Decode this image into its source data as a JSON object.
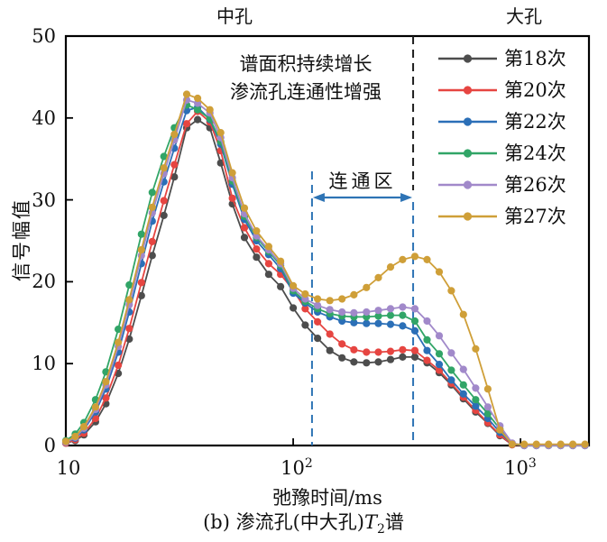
{
  "figure": {
    "region_labels": {
      "mid": "中孔",
      "large": "大孔"
    },
    "annotation": {
      "line1": "谱面积持续增长",
      "line2": "渗流孔连通性增强",
      "color": "#3d7ac0"
    },
    "zone": {
      "label": "连通区",
      "start_ms": 121,
      "end_ms": 337
    },
    "colors": {
      "dashed_blue": "#2e74b5",
      "dashed_black": "#1f1f1f",
      "axis": "#000000",
      "text": "#111111"
    }
  },
  "axes": {
    "x": {
      "label": "弛豫时间/ms",
      "scale": "log",
      "range_ms": [
        10,
        2000
      ],
      "ticks": [
        {
          "base": "10",
          "sup": ""
        },
        {
          "base": "10",
          "sup": "2"
        },
        {
          "base": "10",
          "sup": "3"
        }
      ],
      "tick_values": [
        10,
        100,
        1000
      ]
    },
    "y": {
      "label": "信号幅值",
      "range": [
        0,
        50
      ],
      "ticks": [
        "50",
        "40",
        "30",
        "20",
        "10",
        "0"
      ],
      "tick_values": [
        50,
        40,
        30,
        20,
        10,
        0
      ]
    }
  },
  "caption": {
    "prefix": "(b) 渗流孔(中大孔)",
    "symbol": "T",
    "subscript": "2",
    "suffix": "谱"
  },
  "chart_data": {
    "type": "line",
    "title": "",
    "xlabel": "弛豫时间/ms",
    "ylabel": "信号幅值",
    "x_scale": "log",
    "xlim": [
      10,
      2000
    ],
    "ylim": [
      0,
      50
    ],
    "grid": false,
    "legend_position": "top-right",
    "annotations": [
      "谱面积持续增长",
      "渗流孔连通性增强",
      "连通区",
      "中孔",
      "大孔"
    ],
    "dashed_lines_ms": [
      121,
      337
    ],
    "x_ms": [
      10,
      11,
      12,
      13.5,
      15,
      17,
      19,
      21.5,
      24,
      27,
      30,
      34,
      38,
      43,
      48,
      54,
      61,
      69,
      78,
      88,
      100,
      113,
      128,
      145,
      164,
      185,
      210,
      237,
      268,
      303,
      343,
      388,
      439,
      496,
      561,
      635,
      718,
      812,
      918,
      1038,
      1174,
      1328,
      1502,
      1699,
      1922
    ],
    "series": [
      {
        "name": "第18次",
        "color": "#4d4d4d",
        "values": [
          0.3,
          0.6,
          1.3,
          2.9,
          5.1,
          8.8,
          13.0,
          18.3,
          23.2,
          28.1,
          32.8,
          38.8,
          39.8,
          38.8,
          34.5,
          29.5,
          25.4,
          23.0,
          20.9,
          19.4,
          16.8,
          14.7,
          13.1,
          11.6,
          10.7,
          10.2,
          10.1,
          10.2,
          10.5,
          10.8,
          10.8,
          10.1,
          8.9,
          7.4,
          5.7,
          4.1,
          2.7,
          1.2,
          0.1,
          0,
          0,
          0,
          0,
          0,
          0
        ]
      },
      {
        "name": "第20次",
        "color": "#e64541",
        "values": [
          0.3,
          0.7,
          1.5,
          3.3,
          5.8,
          9.8,
          14.3,
          19.9,
          24.9,
          29.9,
          34.3,
          39.3,
          40.8,
          39.5,
          36.0,
          30.2,
          26.6,
          24.0,
          22.2,
          20.9,
          19.0,
          16.7,
          15.1,
          13.6,
          12.4,
          11.7,
          11.4,
          11.4,
          11.5,
          11.7,
          11.6,
          10.4,
          9.2,
          7.6,
          5.9,
          4.3,
          2.8,
          1.3,
          0.1,
          0,
          0,
          0,
          0,
          0,
          0
        ]
      },
      {
        "name": "第22次",
        "color": "#2b6fb7",
        "values": [
          0.4,
          0.9,
          1.9,
          4.1,
          6.9,
          11.4,
          16.3,
          22.2,
          27.4,
          32.2,
          36.3,
          40.9,
          41.3,
          39.8,
          36.8,
          31.9,
          27.6,
          25.0,
          23.3,
          21.6,
          18.6,
          17.4,
          16.3,
          15.7,
          15.2,
          15.0,
          14.9,
          14.9,
          14.8,
          14.6,
          14.0,
          11.6,
          9.9,
          8.0,
          6.3,
          4.8,
          3.3,
          1.6,
          0.2,
          0,
          0,
          0,
          0,
          0,
          0
        ]
      },
      {
        "name": "第24次",
        "color": "#31a567",
        "values": [
          0.6,
          1.4,
          2.8,
          5.6,
          9.0,
          14.2,
          19.6,
          25.8,
          30.9,
          35.3,
          38.8,
          41.6,
          41.0,
          39.9,
          37.1,
          32.3,
          28.0,
          25.4,
          23.7,
          22.0,
          18.9,
          17.6,
          16.7,
          16.1,
          15.8,
          15.7,
          15.7,
          15.8,
          15.9,
          15.9,
          15.2,
          12.9,
          11.2,
          9.2,
          7.4,
          5.6,
          3.9,
          2.0,
          0.2,
          0,
          0,
          0,
          0,
          0,
          0
        ]
      },
      {
        "name": "第26次",
        "color": "#a189ca",
        "values": [
          0.4,
          1.0,
          2.1,
          4.4,
          7.4,
          12.1,
          17.2,
          23.2,
          28.4,
          33.2,
          37.3,
          42.2,
          41.8,
          40.6,
          37.6,
          32.7,
          28.3,
          25.6,
          23.9,
          22.2,
          19.2,
          17.9,
          17.1,
          16.6,
          16.3,
          16.2,
          16.3,
          16.5,
          16.7,
          16.9,
          16.7,
          15.2,
          13.4,
          11.3,
          9.3,
          7.0,
          4.7,
          2.4,
          0.3,
          0,
          0,
          0,
          0,
          0,
          0
        ]
      },
      {
        "name": "第27次",
        "color": "#cf9f38",
        "values": [
          0.5,
          1.1,
          2.3,
          4.7,
          7.8,
          12.6,
          17.8,
          23.9,
          29.1,
          33.9,
          38.0,
          42.9,
          42.4,
          41.0,
          38.2,
          33.3,
          29.0,
          26.2,
          24.3,
          22.5,
          19.5,
          18.5,
          17.9,
          17.7,
          17.9,
          18.4,
          19.3,
          20.5,
          21.8,
          22.7,
          23.1,
          22.7,
          21.2,
          18.9,
          16.0,
          11.8,
          6.9,
          1.9,
          0.15,
          0.15,
          0.15,
          0.15,
          0.15,
          0.15,
          0.15
        ]
      }
    ]
  }
}
